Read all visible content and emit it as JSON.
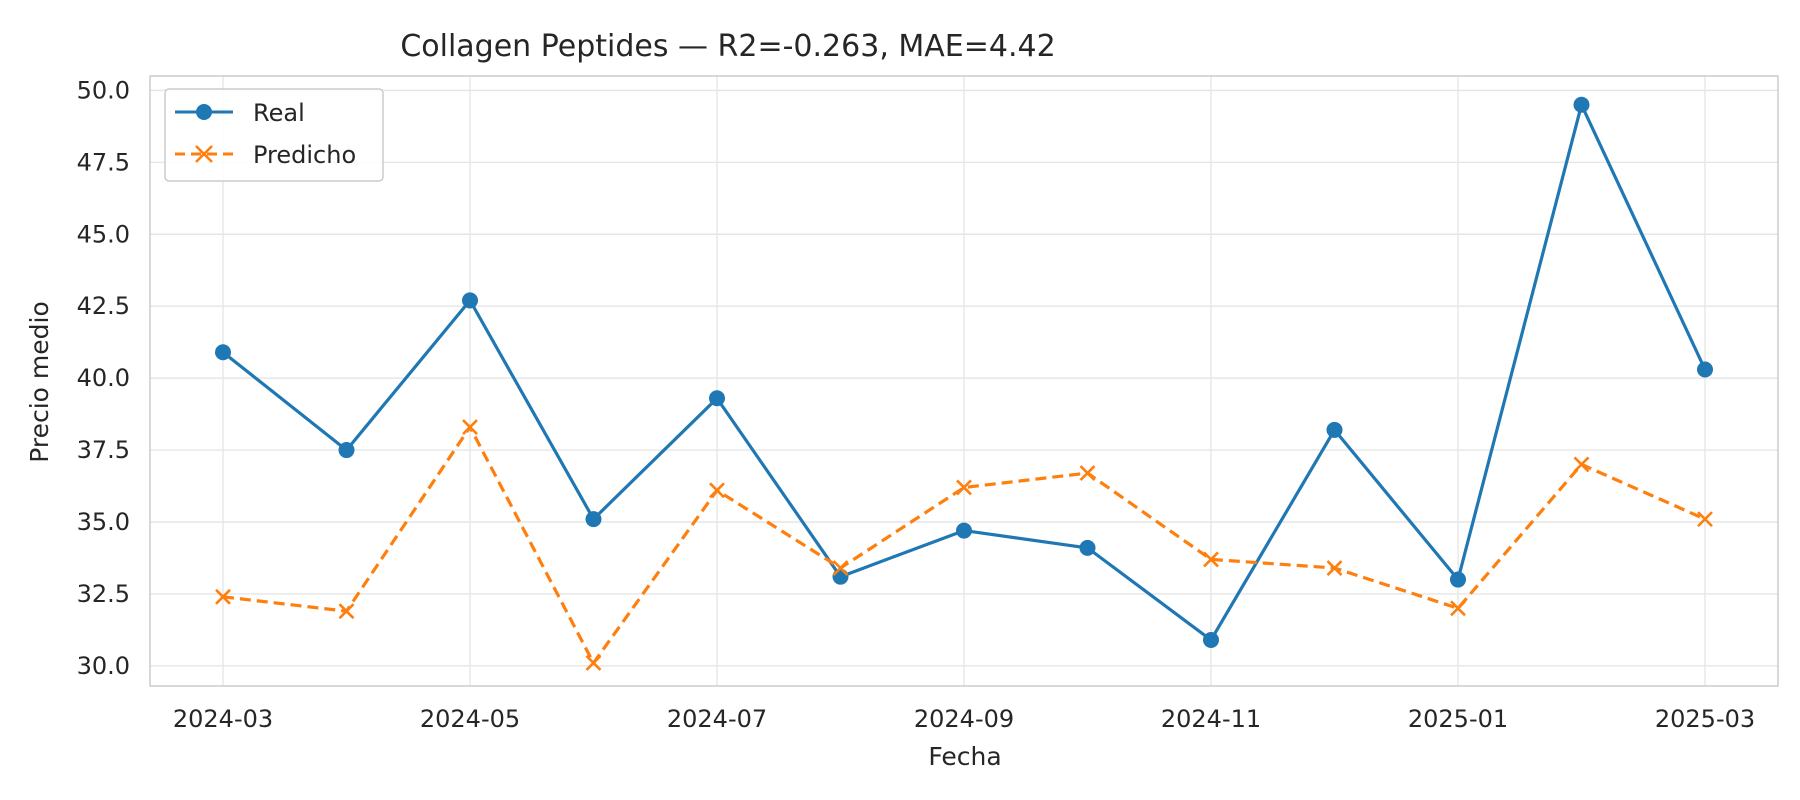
{
  "chart_data": {
    "type": "line",
    "title": "Collagen Peptides — R2=-0.263, MAE=4.42",
    "xlabel": "Fecha",
    "ylabel": "Precio medio",
    "x": [
      "2024-03",
      "2024-04",
      "2024-05",
      "2024-06",
      "2024-07",
      "2024-08",
      "2024-09",
      "2024-10",
      "2024-11",
      "2024-12",
      "2025-01",
      "2025-02",
      "2025-03"
    ],
    "x_tick_labels": [
      "2024-03",
      "2024-05",
      "2024-07",
      "2024-09",
      "2024-11",
      "2025-01",
      "2025-03"
    ],
    "y_ticks": [
      30.0,
      32.5,
      35.0,
      37.5,
      40.0,
      42.5,
      45.0,
      47.5,
      50.0
    ],
    "y_tick_labels": [
      "30.0",
      "32.5",
      "35.0",
      "37.5",
      "40.0",
      "42.5",
      "45.0",
      "47.5",
      "50.0"
    ],
    "ylim": [
      29.3,
      50.5
    ],
    "grid": true,
    "legend_position": "top-left",
    "series": [
      {
        "name": "Real",
        "color": "#1f77b4",
        "marker": "circle",
        "linestyle": "solid",
        "values": [
          40.9,
          37.5,
          42.7,
          35.1,
          39.3,
          33.1,
          34.7,
          34.1,
          30.9,
          38.2,
          33.0,
          49.5,
          40.3
        ]
      },
      {
        "name": "Predicho",
        "color": "#ff7f0e",
        "marker": "x",
        "linestyle": "dashed",
        "values": [
          32.4,
          31.9,
          38.3,
          30.1,
          36.1,
          33.4,
          36.2,
          36.7,
          33.7,
          33.4,
          32.0,
          37.0,
          35.1
        ]
      }
    ]
  }
}
